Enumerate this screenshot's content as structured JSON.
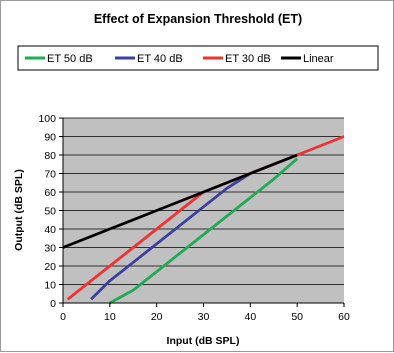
{
  "chart_data": {
    "type": "line",
    "title": "Effect of Expansion Threshold (ET)",
    "xlabel": "Input (dB SPL)",
    "ylabel": "Output (dB SPL)",
    "xlim": [
      0,
      60
    ],
    "ylim": [
      0,
      100
    ],
    "x_ticks": [
      "0",
      "10",
      "20",
      "30",
      "40",
      "50",
      "60"
    ],
    "y_ticks": [
      "0",
      "10",
      "20",
      "30",
      "40",
      "50",
      "60",
      "70",
      "80",
      "90",
      "100"
    ],
    "grid": "horizontal",
    "legend_position": "top",
    "plot_background": "#c0c0c0",
    "series": [
      {
        "name": "ET 50 dB",
        "color": "#22aa55",
        "x": [
          10,
          15,
          20,
          25,
          30,
          35,
          40,
          45,
          50
        ],
        "y": [
          0,
          7,
          17,
          27,
          37,
          47,
          57,
          67,
          78
        ]
      },
      {
        "name": "ET 40 dB",
        "color": "#3a3fa0",
        "x": [
          6,
          10,
          15,
          20,
          25,
          30,
          35,
          40
        ],
        "y": [
          2,
          12,
          22,
          32,
          42,
          52,
          62,
          70
        ]
      },
      {
        "name": "ET 30 dB",
        "color": "#ee3333",
        "x": [
          1,
          5,
          10,
          15,
          20,
          25,
          30,
          40,
          50,
          60
        ],
        "y": [
          2,
          10,
          20,
          30,
          40,
          50,
          60,
          70,
          80,
          90
        ]
      },
      {
        "name": "Linear",
        "color": "#000000",
        "x": [
          0,
          10,
          20,
          30,
          40,
          50
        ],
        "y": [
          30,
          40,
          50,
          60,
          70,
          80
        ]
      }
    ]
  }
}
